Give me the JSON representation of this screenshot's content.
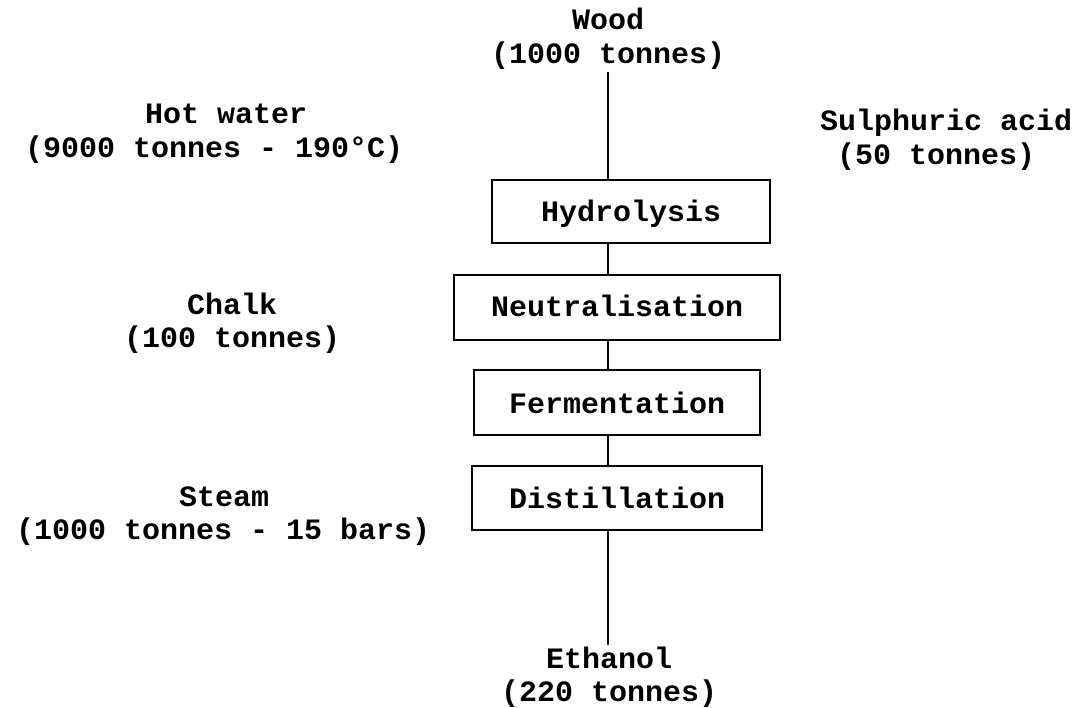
{
  "source": {
    "label": "Wood",
    "amount": "(1000 tonnes)"
  },
  "steps": [
    {
      "label": "Hydrolysis"
    },
    {
      "label": "Neutralisation"
    },
    {
      "label": "Fermentation"
    },
    {
      "label": "Distillation"
    }
  ],
  "inputs": [
    {
      "label": "Hot water",
      "amount": "(9000 tonnes - 190°C)"
    },
    {
      "label": "Sulphuric acid",
      "amount": "(50 tonnes)"
    },
    {
      "label": "Chalk",
      "amount": "(100 tonnes)"
    },
    {
      "label": "Steam",
      "amount": "(1000 tonnes - 15 bars)"
    }
  ],
  "product": {
    "label": "Ethanol",
    "amount": "(220 tonnes)"
  }
}
